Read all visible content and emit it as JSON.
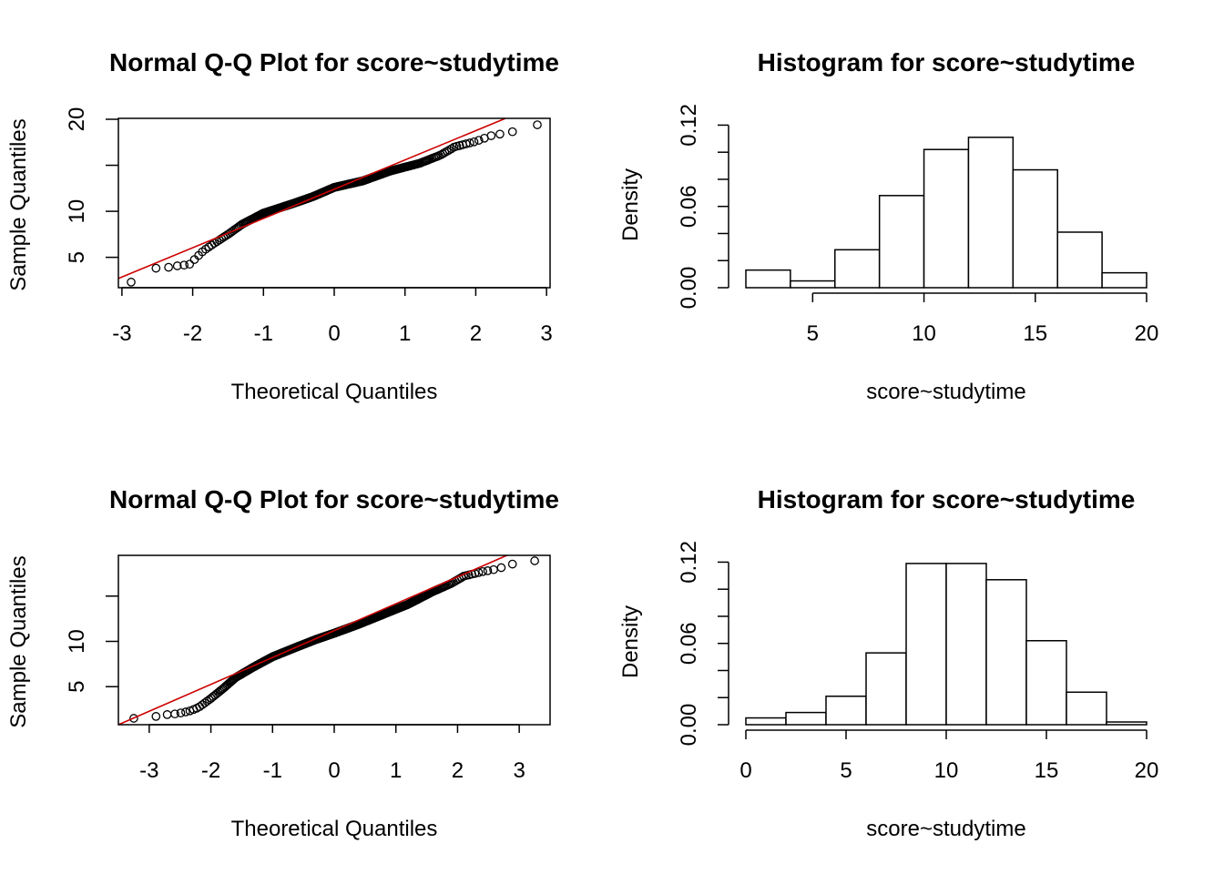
{
  "chart_data": [
    {
      "type": "scatter",
      "title": "Normal Q-Q Plot for  score~studytime",
      "xlabel": "Theoretical Quantiles",
      "ylabel": "Sample Quantiles",
      "xlim": [
        -3.05,
        3.05
      ],
      "ylim": [
        1.7,
        20.1
      ],
      "xticks": [
        -3,
        -2,
        -1,
        0,
        1,
        2,
        3
      ],
      "yticks": [
        5,
        10,
        15,
        20
      ],
      "ytick_labels": [
        "5",
        "10",
        "",
        "20"
      ],
      "reference_line": {
        "color": "#cc0000",
        "x": [
          -3.05,
          2.42
        ],
        "y": [
          2.7,
          20.1
        ]
      },
      "points": {
        "n": 300,
        "x_range": [
          -2.87,
          2.87
        ],
        "quantile_curve": [
          [
            -2.87,
            2.3
          ],
          [
            -2.5,
            3.9
          ],
          [
            -2.35,
            3.9
          ],
          [
            -2.2,
            4.1
          ],
          [
            -2.05,
            4.2
          ],
          [
            -1.85,
            5.7
          ],
          [
            -1.7,
            6.5
          ],
          [
            -1.5,
            7.5
          ],
          [
            -1.3,
            8.6
          ],
          [
            -1.0,
            9.8
          ],
          [
            -0.6,
            10.8
          ],
          [
            -0.3,
            11.6
          ],
          [
            0.0,
            12.6
          ],
          [
            0.4,
            13.3
          ],
          [
            0.8,
            14.4
          ],
          [
            1.2,
            15.2
          ],
          [
            1.5,
            16.1
          ],
          [
            1.7,
            17.0
          ],
          [
            2.0,
            17.6
          ],
          [
            2.25,
            18.3
          ],
          [
            2.45,
            18.5
          ],
          [
            2.87,
            19.4
          ]
        ]
      }
    },
    {
      "type": "bar",
      "title": "Histogram for  score~studytime",
      "xlabel": "score~studytime",
      "ylabel": "Density",
      "xlim": [
        2,
        20
      ],
      "ylim": [
        0,
        0.125
      ],
      "xticks": [
        5,
        10,
        15,
        20
      ],
      "yticks": [
        0,
        0.02,
        0.04,
        0.06,
        0.08,
        0.1,
        0.12
      ],
      "ytick_labels": [
        "0.00",
        "",
        "",
        "0.06",
        "",
        "",
        "0.12"
      ],
      "bin_edges": [
        2,
        4,
        6,
        8,
        10,
        12,
        14,
        16,
        18,
        20
      ],
      "values": [
        0.013,
        0.005,
        0.028,
        0.068,
        0.102,
        0.111,
        0.087,
        0.041,
        0.011
      ]
    },
    {
      "type": "scatter",
      "title": "Normal Q-Q Plot for  score~studytime",
      "xlabel": "Theoretical Quantiles",
      "ylabel": "Sample Quantiles",
      "xlim": [
        -3.5,
        3.5
      ],
      "ylim": [
        0.8,
        19.5
      ],
      "xticks": [
        -3,
        -2,
        -1,
        0,
        1,
        2,
        3
      ],
      "yticks": [
        5,
        10,
        15
      ],
      "ytick_labels": [
        "5",
        "10",
        ""
      ],
      "reference_line": {
        "color": "#cc0000",
        "x": [
          -3.5,
          2.8
        ],
        "y": [
          0.8,
          19.5
        ]
      },
      "points": {
        "n": 500,
        "x_range": [
          -3.25,
          3.25
        ],
        "quantile_curve": [
          [
            -3.25,
            1.5
          ],
          [
            -2.9,
            1.7
          ],
          [
            -2.75,
            1.9
          ],
          [
            -2.55,
            2.0
          ],
          [
            -2.35,
            2.3
          ],
          [
            -2.2,
            2.7
          ],
          [
            -2.0,
            3.7
          ],
          [
            -1.8,
            4.8
          ],
          [
            -1.6,
            6.0
          ],
          [
            -1.3,
            7.2
          ],
          [
            -1.0,
            8.3
          ],
          [
            -0.6,
            9.4
          ],
          [
            -0.3,
            10.2
          ],
          [
            0.0,
            10.9
          ],
          [
            0.4,
            11.9
          ],
          [
            0.8,
            13.0
          ],
          [
            1.2,
            14.1
          ],
          [
            1.6,
            15.5
          ],
          [
            1.9,
            16.4
          ],
          [
            2.1,
            17.2
          ],
          [
            2.4,
            17.7
          ],
          [
            2.65,
            18.0
          ],
          [
            2.85,
            18.5
          ],
          [
            3.25,
            18.9
          ]
        ]
      }
    },
    {
      "type": "bar",
      "title": "Histogram for  score~studytime",
      "xlabel": "score~studytime",
      "ylabel": "Density",
      "xlim": [
        0,
        20
      ],
      "ylim": [
        0,
        0.125
      ],
      "xticks": [
        0,
        5,
        10,
        15,
        20
      ],
      "yticks": [
        0,
        0.02,
        0.04,
        0.06,
        0.08,
        0.1,
        0.12
      ],
      "ytick_labels": [
        "0.00",
        "",
        "",
        "0.06",
        "",
        "",
        "0.12"
      ],
      "bin_edges": [
        0,
        2,
        4,
        6,
        8,
        10,
        12,
        14,
        16,
        18,
        20
      ],
      "values": [
        0.005,
        0.009,
        0.021,
        0.053,
        0.119,
        0.119,
        0.107,
        0.062,
        0.024,
        0.002
      ]
    }
  ]
}
